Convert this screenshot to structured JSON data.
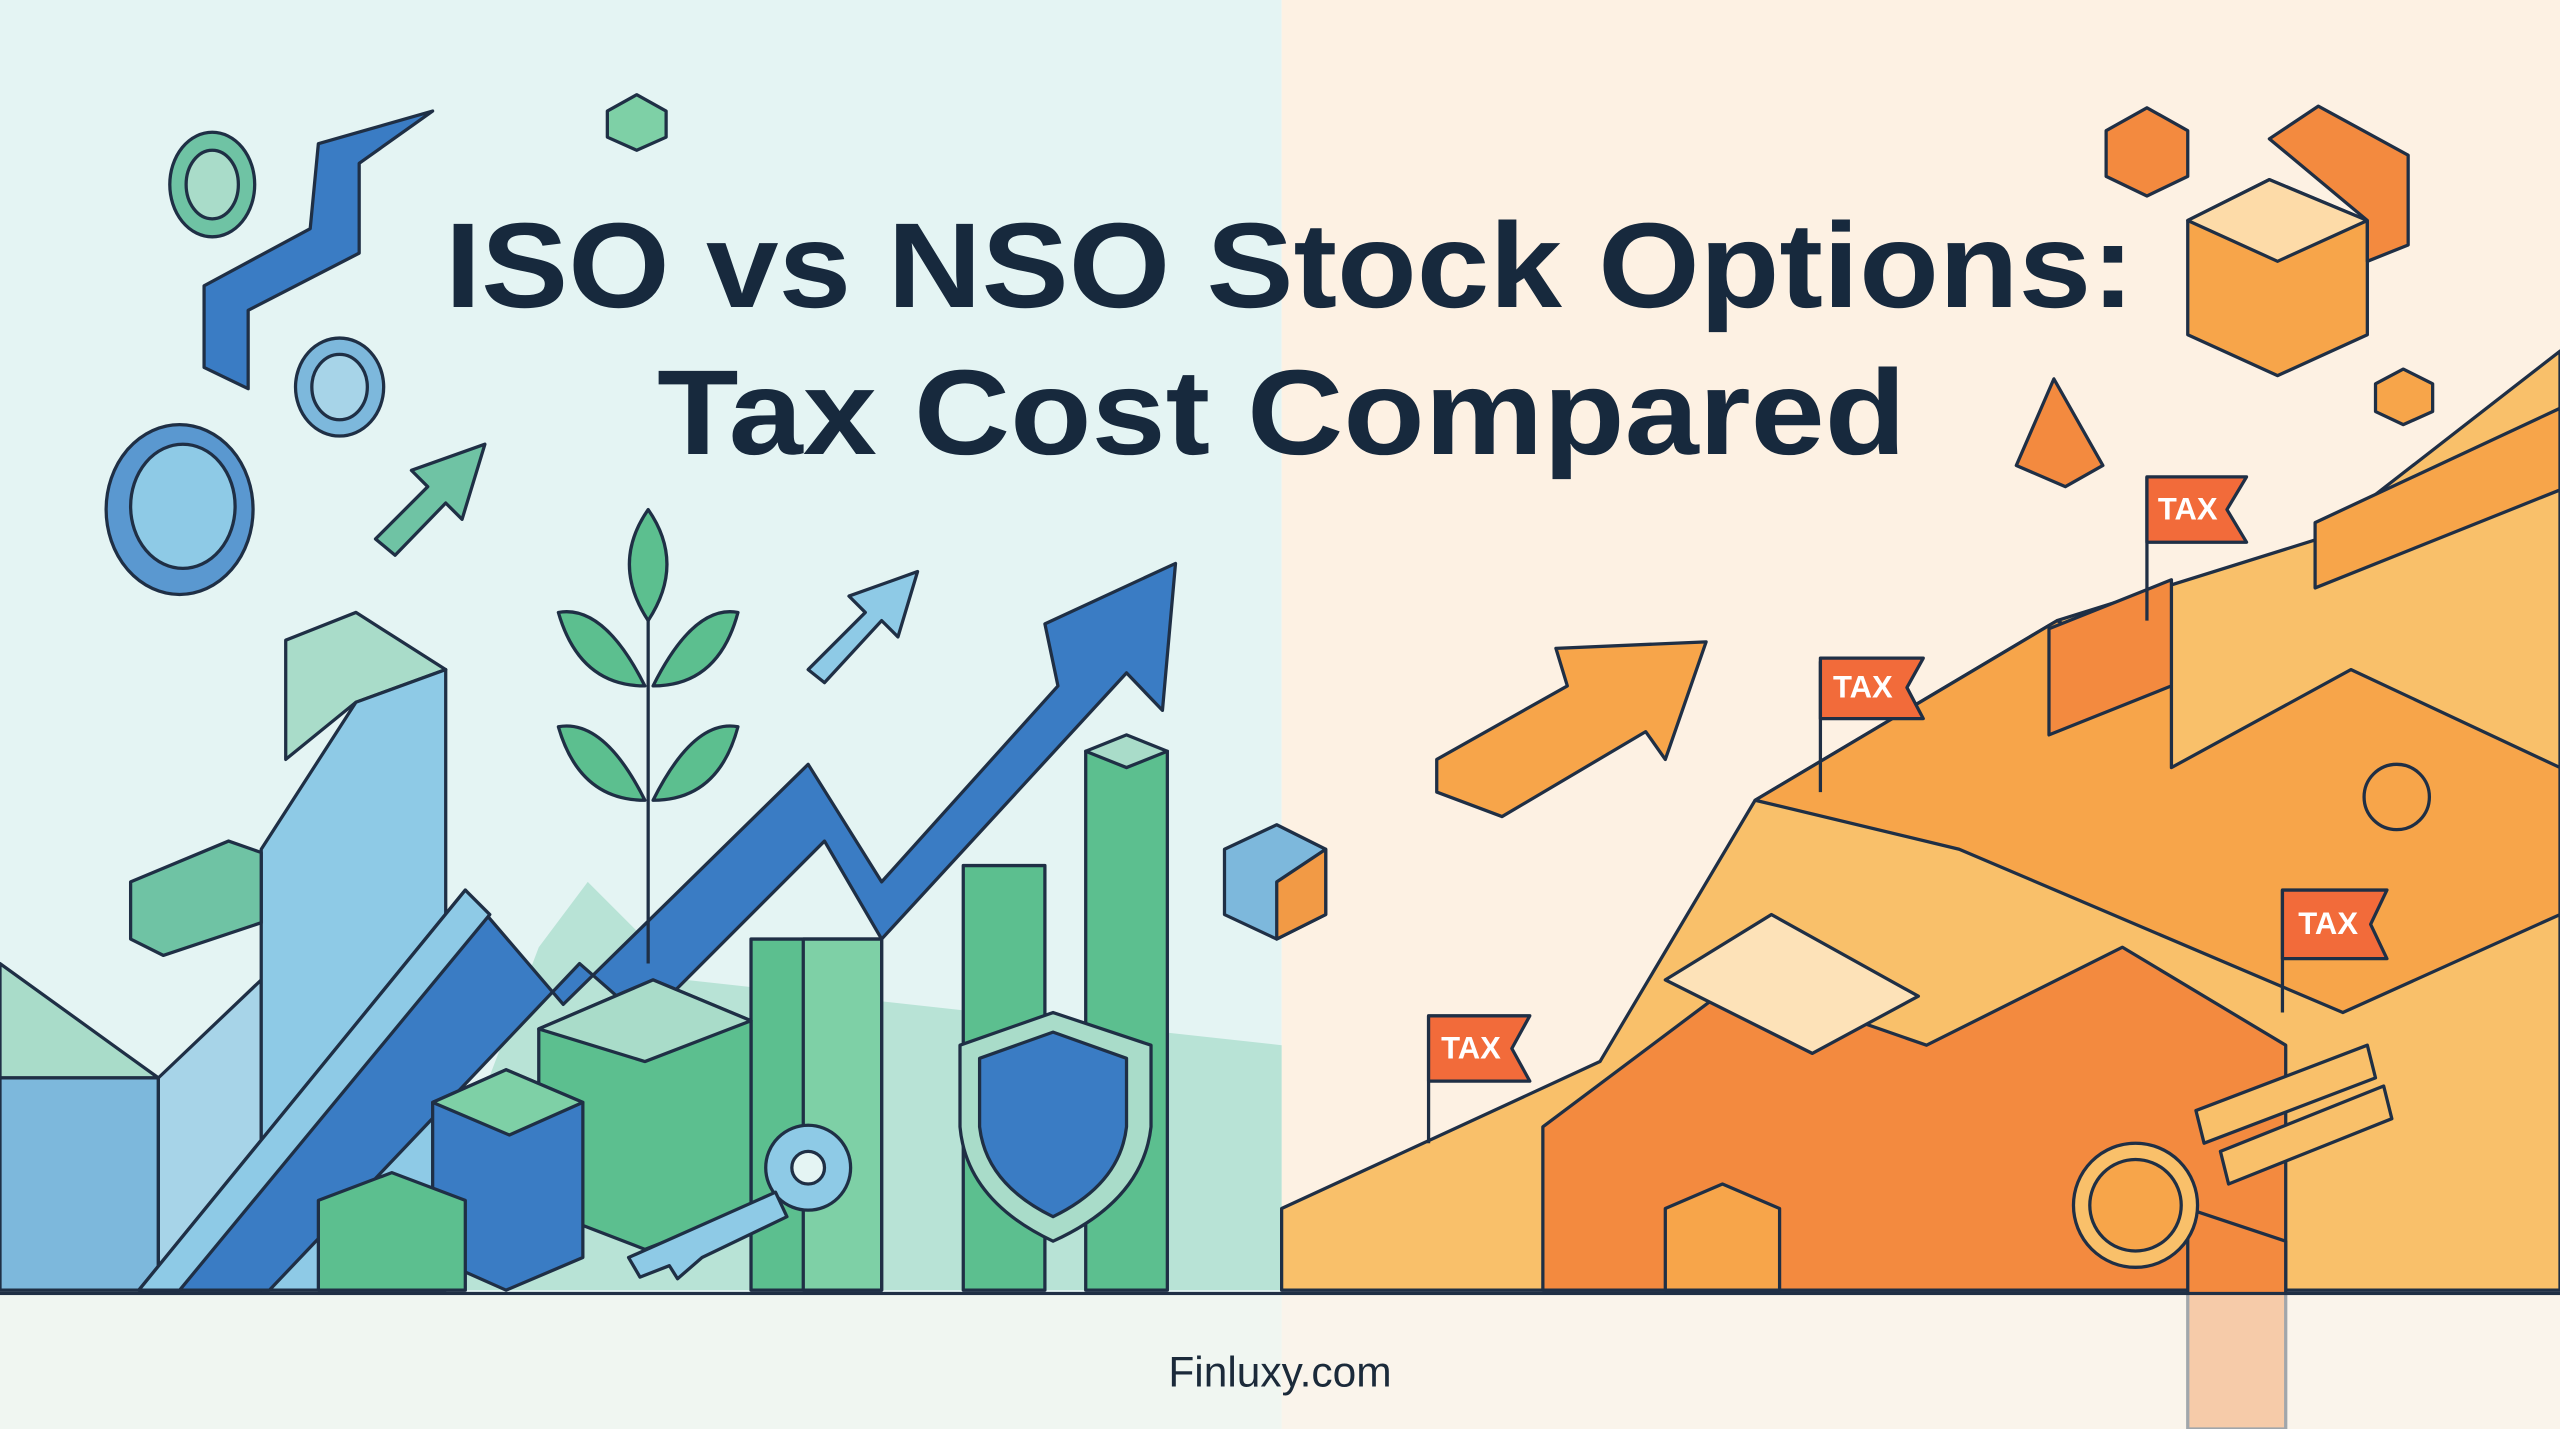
{
  "title": {
    "lines": [
      "ISO vs NSO Stock Options:",
      "Tax Cost Compared"
    ]
  },
  "flags": [
    "TAX",
    "TAX",
    "TAX",
    "TAX"
  ],
  "footer": "Finluxy.com"
}
